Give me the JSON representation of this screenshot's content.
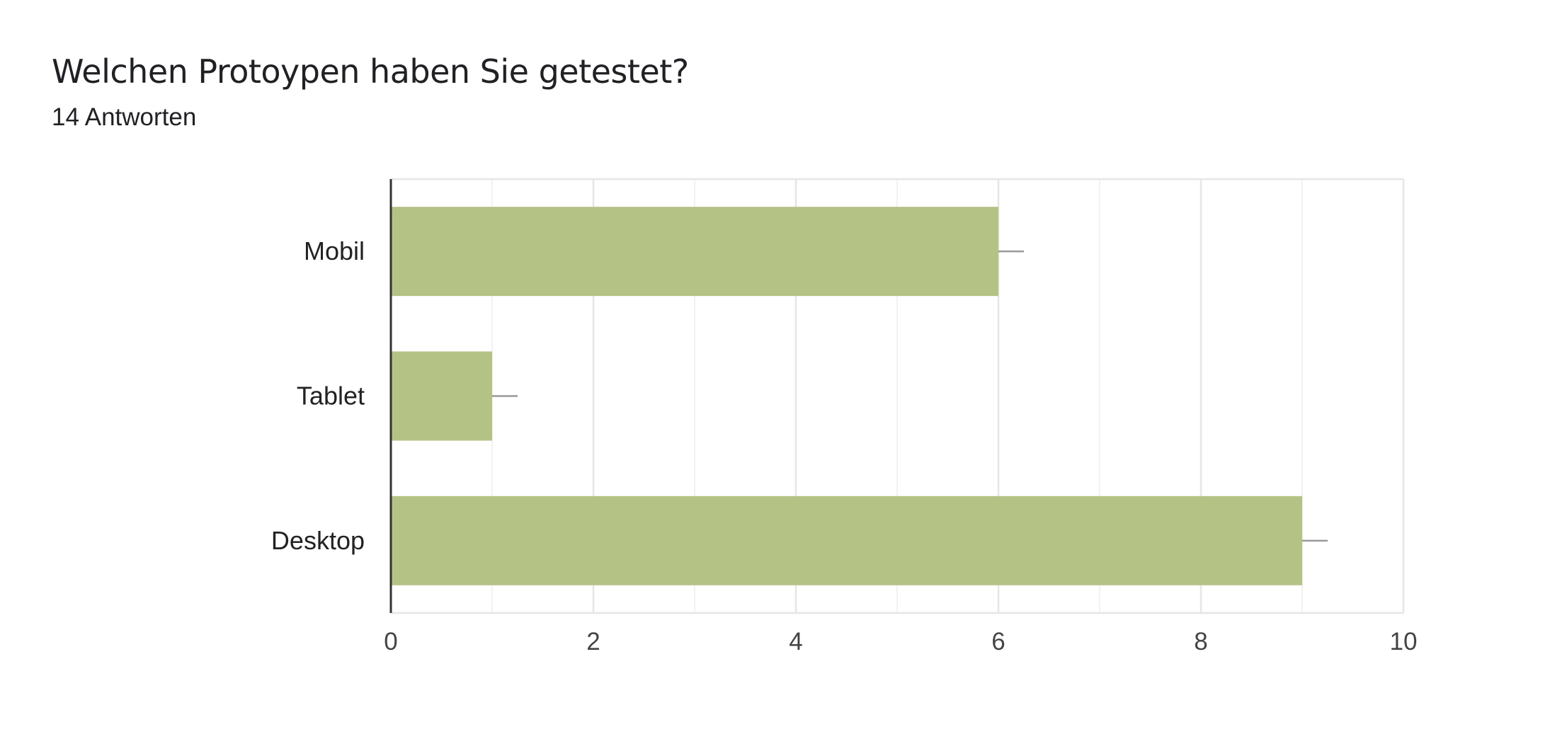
{
  "header": {
    "title": "Welchen Protoypen haben Sie getestet?",
    "subtitle": "14 Antworten"
  },
  "colors": {
    "bar": "#b5c286",
    "grid_major": "#e6e6e6",
    "grid_minor": "#f2f2f2",
    "axis": "#333333",
    "error_bar": "#999999"
  },
  "chart_data": {
    "type": "bar",
    "orientation": "horizontal",
    "title": "Welchen Protoypen haben Sie getestet?",
    "subtitle": "14 Antworten",
    "categories": [
      "Mobil",
      "Tablet",
      "Desktop"
    ],
    "values": [
      6,
      1,
      9
    ],
    "xlim": [
      0,
      10
    ],
    "xticks": [
      "0",
      "2",
      "4",
      "6",
      "8",
      "10"
    ],
    "grid": true,
    "legend": "none"
  }
}
